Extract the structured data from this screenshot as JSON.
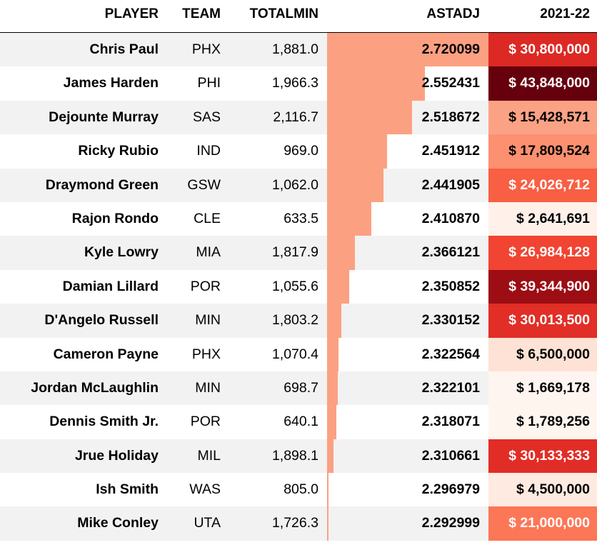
{
  "chart_data": {
    "type": "table",
    "columns": [
      "PLAYER",
      "TEAM",
      "TOTALMIN",
      "ASTADJ",
      "2021-22"
    ],
    "astadj_bar_color": "#fca082",
    "rows": [
      {
        "player": "Chris Paul",
        "team": "PHX",
        "totalmin": "1,881.0",
        "astadj": "2.720099",
        "astadj_value": 2.720099,
        "salary": "$ 30,800,000",
        "salary_value": 30800000
      },
      {
        "player": "James Harden",
        "team": "PHI",
        "totalmin": "1,966.3",
        "astadj": "2.552431",
        "astadj_value": 2.552431,
        "salary": "$ 43,848,000",
        "salary_value": 43848000
      },
      {
        "player": "Dejounte Murray",
        "team": "SAS",
        "totalmin": "2,116.7",
        "astadj": "2.518672",
        "astadj_value": 2.518672,
        "salary": "$ 15,428,571",
        "salary_value": 15428571
      },
      {
        "player": "Ricky Rubio",
        "team": "IND",
        "totalmin": "969.0",
        "astadj": "2.451912",
        "astadj_value": 2.451912,
        "salary": "$ 17,809,524",
        "salary_value": 17809524
      },
      {
        "player": "Draymond Green",
        "team": "GSW",
        "totalmin": "1,062.0",
        "astadj": "2.441905",
        "astadj_value": 2.441905,
        "salary": "$ 24,026,712",
        "salary_value": 24026712
      },
      {
        "player": "Rajon Rondo",
        "team": "CLE",
        "totalmin": "633.5",
        "astadj": "2.410870",
        "astadj_value": 2.41087,
        "salary": "$ 2,641,691",
        "salary_value": 2641691
      },
      {
        "player": "Kyle Lowry",
        "team": "MIA",
        "totalmin": "1,817.9",
        "astadj": "2.366121",
        "astadj_value": 2.366121,
        "salary": "$ 26,984,128",
        "salary_value": 26984128
      },
      {
        "player": "Damian Lillard",
        "team": "POR",
        "totalmin": "1,055.6",
        "astadj": "2.350852",
        "astadj_value": 2.350852,
        "salary": "$ 39,344,900",
        "salary_value": 39344900
      },
      {
        "player": "D'Angelo Russell",
        "team": "MIN",
        "totalmin": "1,803.2",
        "astadj": "2.330152",
        "astadj_value": 2.330152,
        "salary": "$ 30,013,500",
        "salary_value": 30013500
      },
      {
        "player": "Cameron Payne",
        "team": "PHX",
        "totalmin": "1,070.4",
        "astadj": "2.322564",
        "astadj_value": 2.322564,
        "salary": "$ 6,500,000",
        "salary_value": 6500000
      },
      {
        "player": "Jordan McLaughlin",
        "team": "MIN",
        "totalmin": "698.7",
        "astadj": "2.322101",
        "astadj_value": 2.322101,
        "salary": "$ 1,669,178",
        "salary_value": 1669178
      },
      {
        "player": "Dennis Smith Jr.",
        "team": "POR",
        "totalmin": "640.1",
        "astadj": "2.318071",
        "astadj_value": 2.318071,
        "salary": "$ 1,789,256",
        "salary_value": 1789256
      },
      {
        "player": "Jrue Holiday",
        "team": "MIL",
        "totalmin": "1,898.1",
        "astadj": "2.310661",
        "astadj_value": 2.310661,
        "salary": "$ 30,133,333",
        "salary_value": 30133333
      },
      {
        "player": "Ish Smith",
        "team": "WAS",
        "totalmin": "805.0",
        "astadj": "2.296979",
        "astadj_value": 2.296979,
        "salary": "$ 4,500,000",
        "salary_value": 4500000
      },
      {
        "player": "Mike Conley",
        "team": "UTA",
        "totalmin": "1,726.3",
        "astadj": "2.292999",
        "astadj_value": 2.292999,
        "salary": "$ 21,000,000",
        "salary_value": 21000000
      }
    ]
  }
}
